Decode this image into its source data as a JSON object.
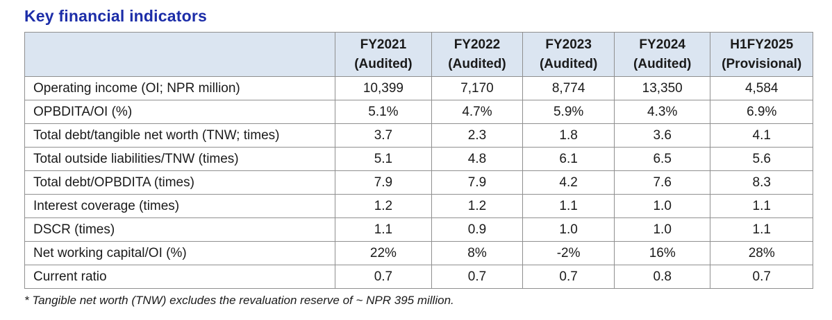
{
  "page": {
    "title": "Key financial indicators",
    "footnote": "* Tangible net worth (TNW) excludes the revaluation reserve of ~ NPR 395 million."
  },
  "colors": {
    "title_blue": "#1c2da8",
    "header_background": "#dbe5f1",
    "table_border": "#8f8f8f",
    "body_text": "#1a1a1a"
  },
  "table": {
    "corner_label": "",
    "columns": [
      {
        "line1": "FY2021",
        "line2": "(Audited)"
      },
      {
        "line1": "FY2022",
        "line2": "(Audited)"
      },
      {
        "line1": "FY2023",
        "line2": "(Audited)"
      },
      {
        "line1": "FY2024",
        "line2": "(Audited)"
      },
      {
        "line1": "H1FY2025",
        "line2": "(Provisional)"
      }
    ],
    "rows": [
      {
        "label": "Operating income (OI; NPR million)",
        "values": [
          "10,399",
          "7,170",
          "8,774",
          "13,350",
          "4,584"
        ]
      },
      {
        "label": "OPBDITA/OI (%)",
        "values": [
          "5.1%",
          "4.7%",
          "5.9%",
          "4.3%",
          "6.9%"
        ]
      },
      {
        "label": "Total debt/tangible net worth (TNW; times)",
        "values": [
          "3.7",
          "2.3",
          "1.8",
          "3.6",
          "4.1"
        ]
      },
      {
        "label": "Total outside liabilities/TNW (times)",
        "values": [
          "5.1",
          "4.8",
          "6.1",
          "6.5",
          "5.6"
        ]
      },
      {
        "label": "Total debt/OPBDITA (times)",
        "values": [
          "7.9",
          "7.9",
          "4.2",
          "7.6",
          "8.3"
        ]
      },
      {
        "label": "Interest coverage (times)",
        "values": [
          "1.2",
          "1.2",
          "1.1",
          "1.0",
          "1.1"
        ]
      },
      {
        "label": "DSCR (times)",
        "values": [
          "1.1",
          "0.9",
          "1.0",
          "1.0",
          "1.1"
        ]
      },
      {
        "label": "Net working capital/OI (%)",
        "values": [
          "22%",
          "8%",
          "-2%",
          "16%",
          "28%"
        ]
      },
      {
        "label": "Current ratio",
        "values": [
          "0.7",
          "0.7",
          "0.7",
          "0.8",
          "0.7"
        ]
      }
    ]
  }
}
